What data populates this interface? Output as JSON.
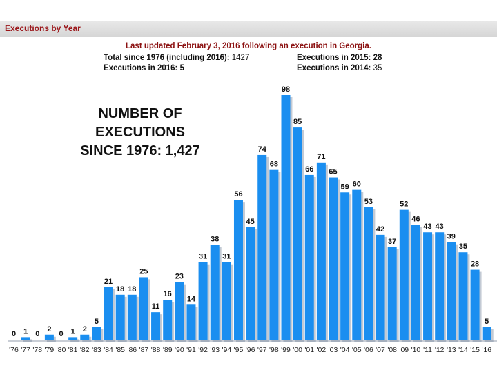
{
  "header": {
    "title": "Executions by Year"
  },
  "info": {
    "updated": "Last updated February 3, 2016 following an execution in Georgia.",
    "total_label": "Total since 1976 (including 2016):",
    "total_value": "1427",
    "exec2015_label": "Executions in 2015:",
    "exec2015_value": "28",
    "exec2016_label": "Executions in 2016:",
    "exec2016_value": "5",
    "exec2014_label": "Executions in 2014:",
    "exec2014_value": "35"
  },
  "colors": {
    "bar": "#1a8ef0",
    "bar_shadow": "#7a8aa0",
    "header_title": "#9a1418"
  },
  "chart_data": {
    "type": "bar",
    "title": "NUMBER OF EXECUTIONS SINCE 1976: 1,427",
    "title_lines": [
      "NUMBER OF EXECUTIONS",
      "SINCE 1976: 1,427"
    ],
    "xlabel": "",
    "ylabel": "",
    "ylim": [
      0,
      100
    ],
    "grid": false,
    "categories": [
      "'76",
      "'77",
      "'78",
      "'79",
      "'80",
      "'81",
      "'82",
      "'83",
      "'84",
      "'85",
      "'86",
      "'87",
      "'88",
      "'89",
      "'90",
      "'91",
      "'92",
      "'93",
      "'94",
      "'95",
      "'96",
      "'97",
      "'98",
      "'99",
      "'00",
      "'01",
      "'02",
      "'03",
      "'04",
      "'05",
      "'06",
      "'07",
      "'08",
      "'09",
      "'10",
      "'11",
      "'12",
      "'13",
      "'14",
      "'15",
      "'16"
    ],
    "values": [
      0,
      1,
      0,
      2,
      0,
      1,
      2,
      5,
      21,
      18,
      18,
      25,
      11,
      16,
      23,
      14,
      31,
      38,
      31,
      56,
      45,
      74,
      68,
      98,
      85,
      66,
      71,
      65,
      59,
      60,
      53,
      42,
      37,
      52,
      46,
      43,
      43,
      39,
      35,
      28,
      5
    ]
  }
}
